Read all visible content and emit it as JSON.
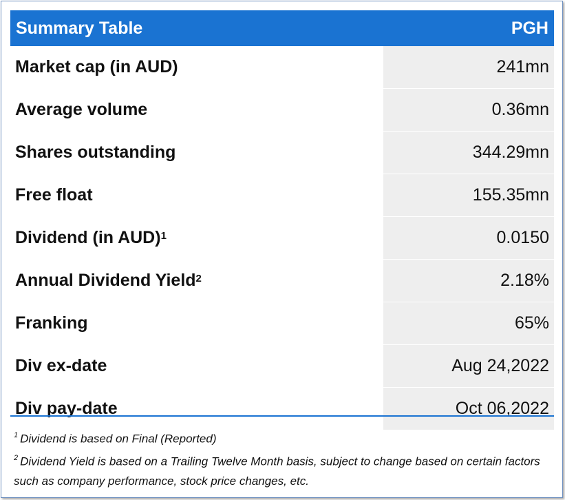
{
  "header": {
    "title": "Summary Table",
    "ticker": "PGH"
  },
  "rows": [
    {
      "label": "Market cap (in AUD)",
      "sup": "",
      "value": "241mn"
    },
    {
      "label": "Average volume",
      "sup": "",
      "value": "0.36mn"
    },
    {
      "label": "Shares outstanding",
      "sup": "",
      "value": "344.29mn"
    },
    {
      "label": "Free float",
      "sup": "",
      "value": "155.35mn"
    },
    {
      "label": "Dividend (in AUD)",
      "sup": "1",
      "value": "0.0150"
    },
    {
      "label": "Annual Dividend Yield",
      "sup": "2",
      "value": "2.18%"
    },
    {
      "label": "Franking",
      "sup": "",
      "value": "65%"
    },
    {
      "label": "Div ex-date",
      "sup": "",
      "value": "Aug 24,2022"
    },
    {
      "label": "Div pay-date",
      "sup": "",
      "value": "Oct 06,2022"
    }
  ],
  "footnotes": [
    {
      "marker": "1",
      "text": "Dividend is based on Final (Reported)"
    },
    {
      "marker": "2",
      "text": "Dividend Yield is based on a Trailing Twelve Month basis, subject to change based on certain factors such as company performance, stock price changes, etc."
    }
  ],
  "colors": {
    "header_bg": "#1a73d2",
    "value_bg": "#eeeeee",
    "frame_border": "#6d8fbf"
  }
}
